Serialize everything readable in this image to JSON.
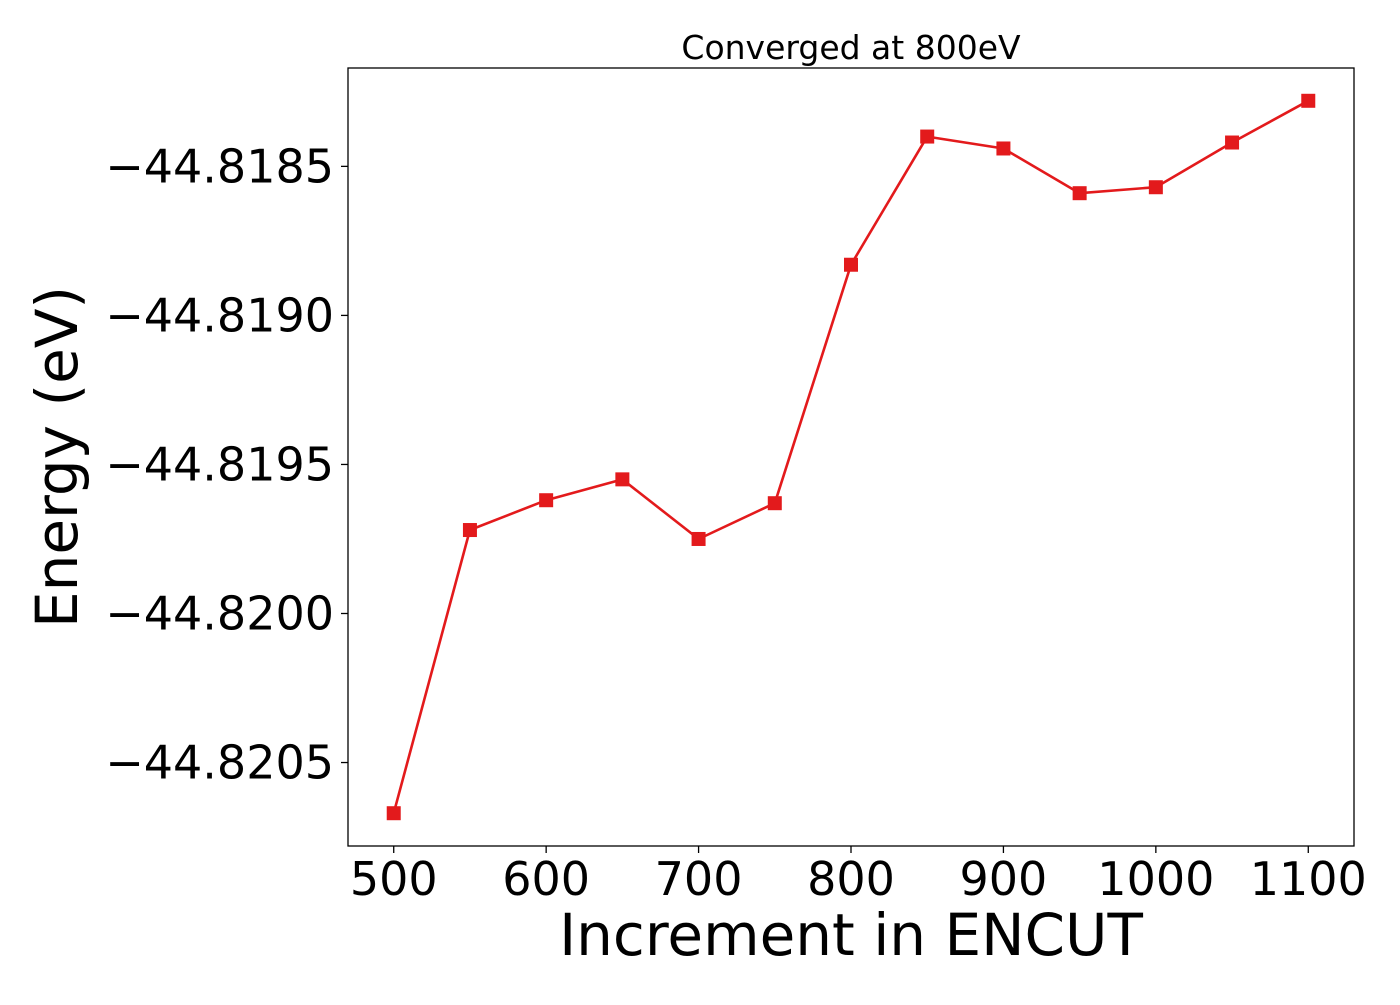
{
  "chart_data": {
    "type": "line",
    "title": "Converged at 800eV",
    "xlabel": "Increment in ENCUT",
    "ylabel": "Energy (eV)",
    "xlim": [
      470,
      1130
    ],
    "ylim": [
      -44.82078,
      -44.81817
    ],
    "xticks": [
      500,
      600,
      700,
      800,
      900,
      1000,
      1100
    ],
    "xtick_labels": [
      "500",
      "600",
      "700",
      "800",
      "900",
      "1000",
      "1100"
    ],
    "yticks": [
      -44.8185,
      -44.819,
      -44.8195,
      -44.82,
      -44.8205
    ],
    "ytick_labels": [
      "−44.8185",
      "−44.8190",
      "−44.8195",
      "−44.8200",
      "−44.8205"
    ],
    "grid": false,
    "legend": "none",
    "series": [
      {
        "color": "#e31a1c",
        "marker": "square",
        "x": [
          500,
          550,
          600,
          650,
          700,
          750,
          800,
          850,
          900,
          950,
          1000,
          1050,
          1100
        ],
        "y": [
          -44.82067,
          -44.81972,
          -44.81962,
          -44.81955,
          -44.81975,
          -44.81963,
          -44.81883,
          -44.8184,
          -44.81844,
          -44.81859,
          -44.81857,
          -44.81842,
          -44.81828
        ]
      }
    ]
  }
}
